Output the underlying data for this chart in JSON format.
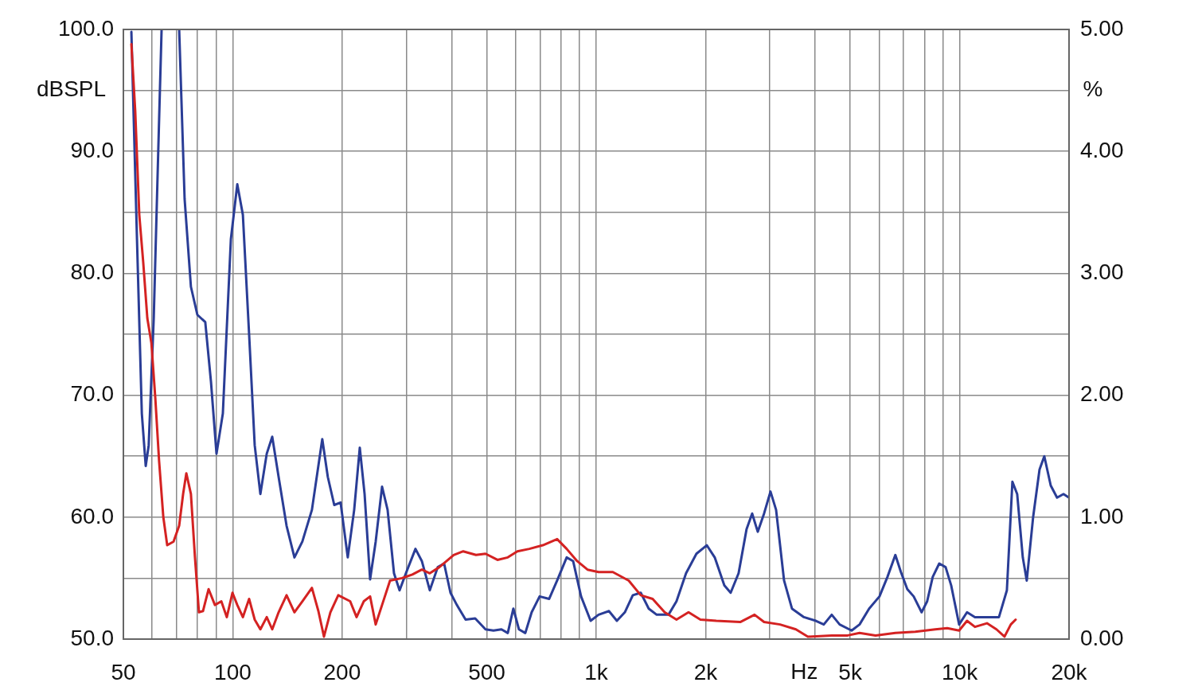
{
  "chart_data": {
    "type": "line",
    "xlabel": "Hz",
    "ylabel": "dBSPL",
    "y2label": "%",
    "log": "x",
    "grid": true,
    "legend": false,
    "marker": "none",
    "line_style": "solid",
    "xlim": [
      50,
      20000
    ],
    "xticks": [
      50,
      {
        "value": 60,
        "label": null
      },
      {
        "value": 70,
        "label": null
      },
      {
        "value": 80,
        "label": null
      },
      {
        "value": 90,
        "label": null
      },
      100,
      200,
      {
        "value": 300,
        "label": null
      },
      {
        "value": 400,
        "label": null
      },
      500,
      {
        "value": 600,
        "label": null
      },
      {
        "value": 700,
        "label": null
      },
      {
        "value": 800,
        "label": null
      },
      {
        "value": 900,
        "label": null
      },
      {
        "value": 1000,
        "label": "1k"
      },
      {
        "value": 2000,
        "label": "2k"
      },
      {
        "value": 3000,
        "label": null
      },
      {
        "value": 4000,
        "label": null
      },
      {
        "value": 5000,
        "label": "5k"
      },
      {
        "value": 6000,
        "label": null
      },
      {
        "value": 7000,
        "label": null
      },
      {
        "value": 8000,
        "label": null
      },
      {
        "value": 9000,
        "label": null
      },
      {
        "value": 10000,
        "label": "10k"
      },
      {
        "value": 20000,
        "label": "20k"
      }
    ],
    "ylim": [
      50,
      100
    ],
    "yticks": [
      {
        "value": 50,
        "label": "50.0"
      },
      {
        "value": 55,
        "label": null
      },
      {
        "value": 60,
        "label": "60.0"
      },
      {
        "value": 65,
        "label": null
      },
      {
        "value": 70,
        "label": "70.0"
      },
      {
        "value": 75,
        "label": null
      },
      {
        "value": 80,
        "label": "80.0"
      },
      {
        "value": 85,
        "label": null
      },
      {
        "value": 90,
        "label": "90.0"
      },
      {
        "value": 95,
        "label": null
      },
      {
        "value": 100,
        "label": "100.0"
      }
    ],
    "y2lim": [
      0,
      5
    ],
    "y2ticks": [
      {
        "value": 0,
        "label": "0.00"
      },
      {
        "value": 1,
        "label": "1.00"
      },
      {
        "value": 2,
        "label": "2.00"
      },
      {
        "value": 3,
        "label": "3.00"
      },
      {
        "value": 4,
        "label": "4.00"
      },
      {
        "value": 5,
        "label": "5.00"
      }
    ],
    "series": [
      {
        "color": "#d42222",
        "x": [
          52.6,
          53.9,
          55.3,
          56.7,
          58.2,
          59.7,
          61.2,
          62.7,
          64.4,
          66.0,
          68.7,
          71.2,
          73.0,
          74.5,
          76.7,
          78.7,
          80.7,
          82.8,
          85.8,
          89.3,
          93.0,
          96.3,
          99.8,
          102.9,
          106.6,
          110.9,
          114.9,
          119.1,
          124.0,
          128.4,
          133.7,
          140.6,
          147.8,
          155.4,
          165.1,
          172.0,
          178.2,
          185.6,
          195.1,
          210.4,
          219.1,
          229.3,
          238.7,
          247.3,
          257.5,
          270.8,
          292.1,
          311.9,
          331.3,
          348.4,
          370.1,
          405.3,
          430.6,
          466.9,
          496.0,
          534.9,
          571.1,
          606.8,
          654.5,
          713.2,
          780.7,
          829.4,
          886.0,
          946.1,
          1015,
          1111,
          1229,
          1326,
          1430,
          1543,
          1663,
          1795,
          1935,
          2140,
          2490,
          2727,
          2897,
          3205,
          3544,
          3824,
          4447,
          4920,
          5305,
          5870,
          6655,
          7552,
          8568,
          9243,
          9968,
          10480,
          11020,
          11890,
          12630,
          13290,
          13830,
          14260
        ],
        "values": [
          98.8,
          93.3,
          84.8,
          80.9,
          76.3,
          74.3,
          69.8,
          64.6,
          60.0,
          57.7,
          58.0,
          59.3,
          61.9,
          63.6,
          61.9,
          56.7,
          52.2,
          52.3,
          54.1,
          52.8,
          53.1,
          51.8,
          53.8,
          52.8,
          51.8,
          53.3,
          51.6,
          50.8,
          51.8,
          50.8,
          52.2,
          53.6,
          52.2,
          53.1,
          54.2,
          52.3,
          50.2,
          52.2,
          53.6,
          53.1,
          51.8,
          53.1,
          53.5,
          51.2,
          52.8,
          54.8,
          55.0,
          55.3,
          55.7,
          55.4,
          55.9,
          56.9,
          57.2,
          56.9,
          57.0,
          56.5,
          56.7,
          57.2,
          57.4,
          57.7,
          58.2,
          57.4,
          56.4,
          55.7,
          55.5,
          55.5,
          54.8,
          53.6,
          53.3,
          52.2,
          51.6,
          52.2,
          51.6,
          51.5,
          51.4,
          52.0,
          51.4,
          51.2,
          50.8,
          50.2,
          50.3,
          50.3,
          50.5,
          50.3,
          50.5,
          50.6,
          50.8,
          50.9,
          50.7,
          51.5,
          51.0,
          51.3,
          50.8,
          50.2,
          51.2,
          51.6
        ]
      },
      {
        "color": "#2a3d96",
        "x": [
          52.6,
          54.5,
          56.2,
          57.6,
          58.7,
          60.6,
          62.7,
          63.7,
          67.3,
          71.2,
          73.7,
          76.7,
          79.9,
          84.0,
          87.1,
          90.2,
          93.9,
          98.8,
          102.9,
          106.6,
          110.9,
          114.9,
          119.1,
          124.0,
          128.4,
          133.7,
          140.6,
          147.8,
          155.4,
          165.1,
          176.3,
          182.6,
          190.2,
          198.0,
          207.2,
          215.8,
          223.6,
          230.5,
          238.7,
          247.3,
          257.5,
          266.7,
          277.7,
          287.7,
          299.5,
          318.2,
          331.3,
          348.4,
          366.4,
          381.5,
          397.2,
          413.6,
          437.2,
          464.5,
          496.0,
          521.6,
          548.6,
          571.1,
          591.6,
          612.9,
          638.1,
          664.4,
          698.7,
          742.3,
          780.7,
          829.4,
          864.0,
          908.6,
          965.3,
          1015,
          1084,
          1140,
          1199,
          1261,
          1326,
          1395,
          1467,
          1581,
          1663,
          1767,
          1887,
          2015,
          2119,
          2252,
          2344,
          2465,
          2592,
          2686,
          2783,
          2897,
          3017,
          3126,
          3288,
          3457,
          3729,
          4022,
          4229,
          4447,
          4676,
          5045,
          5305,
          5636,
          6018,
          6330,
          6655,
          6894,
          7178,
          7474,
          7859,
          8141,
          8433,
          8789,
          9151,
          9480,
          9968,
          10480,
          11020,
          11710,
          12200,
          12830,
          13490,
          13970,
          14400,
          14920,
          15300,
          15930,
          16590,
          17100,
          17810,
          18540,
          19310,
          20000
        ],
        "values": [
          99.8,
          82.8,
          68.5,
          64.2,
          65.9,
          76.3,
          92.6,
          100,
          null,
          100,
          86.1,
          78.9,
          76.6,
          76.0,
          71.1,
          65.2,
          68.5,
          82.8,
          87.3,
          84.8,
          75.0,
          65.9,
          61.9,
          65.2,
          66.6,
          63.3,
          59.3,
          56.7,
          58.0,
          60.6,
          66.4,
          63.3,
          61.0,
          61.2,
          56.7,
          60.6,
          65.7,
          61.9,
          54.9,
          58.0,
          62.5,
          60.6,
          55.4,
          54.0,
          55.4,
          57.4,
          56.4,
          54.0,
          55.9,
          56.2,
          53.8,
          52.8,
          51.6,
          51.7,
          50.8,
          50.7,
          50.8,
          50.5,
          52.5,
          50.8,
          50.5,
          52.2,
          53.5,
          53.3,
          54.8,
          56.7,
          56.4,
          53.5,
          51.5,
          52.0,
          52.3,
          51.5,
          52.2,
          53.6,
          53.8,
          52.5,
          52.0,
          52.0,
          53.1,
          55.4,
          57.0,
          57.7,
          56.7,
          54.4,
          53.8,
          55.4,
          59.0,
          60.3,
          58.8,
          60.3,
          62.1,
          60.6,
          54.8,
          52.5,
          51.8,
          51.5,
          51.2,
          52.0,
          51.2,
          50.7,
          51.2,
          52.5,
          53.5,
          55.1,
          56.9,
          55.5,
          54.1,
          53.5,
          52.2,
          53.1,
          55.1,
          56.2,
          55.9,
          54.4,
          51.2,
          52.2,
          51.8,
          51.8,
          51.8,
          51.8,
          54.0,
          62.9,
          61.9,
          56.7,
          54.8,
          60.0,
          63.9,
          65.0,
          62.6,
          61.6,
          61.9,
          61.6
        ]
      }
    ]
  }
}
